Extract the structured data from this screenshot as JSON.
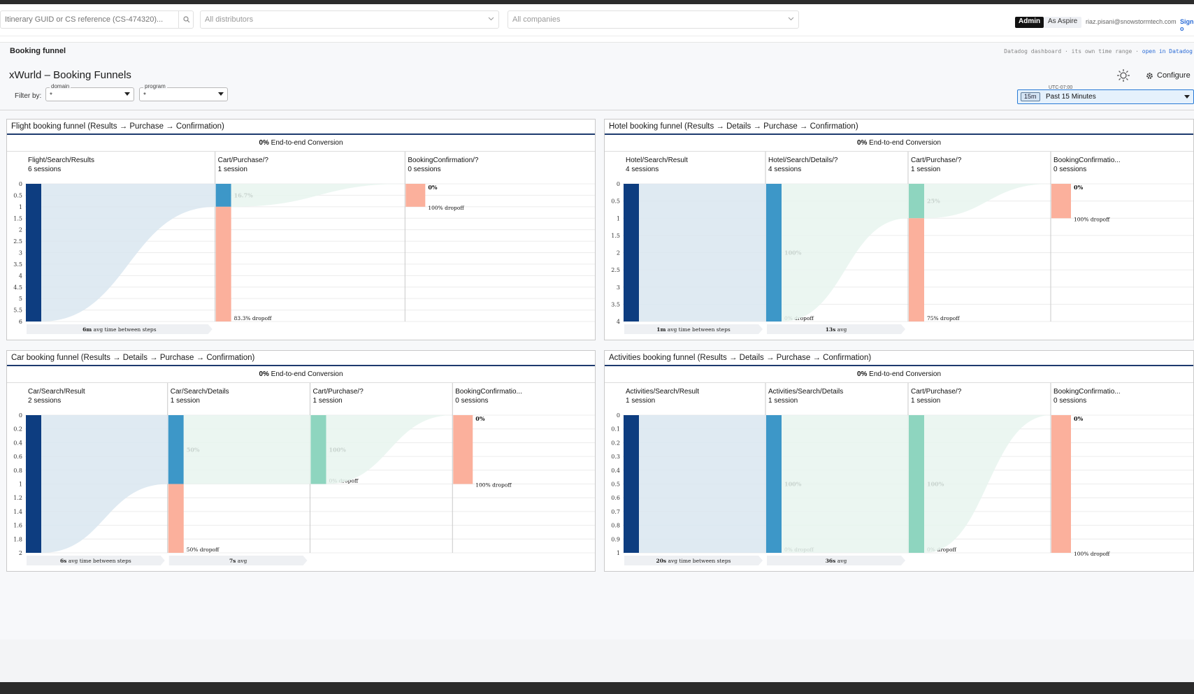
{
  "topbar": {
    "search_placeholder": "Itinerary GUID or CS reference (CS-474320)...",
    "distributors": "All distributors",
    "companies": "All companies",
    "admin": "Admin",
    "as_aspire": "As Aspire",
    "user_email": "riaz.pisani@snowstormtech.com",
    "sign_link": "Sign o"
  },
  "page": {
    "section_title": "Booking funnel",
    "dd_note_prefix": "Datadog dashboard · its own time range ·",
    "dd_note_link": "open in Datadog",
    "dashboard_title": "xWurld – Booking Funnels",
    "configure_label": "Configure",
    "filter_label": "Filter by:",
    "filters": [
      {
        "legend": "domain",
        "value": "*"
      },
      {
        "legend": "program",
        "value": "*"
      }
    ],
    "timezone": "UTC-07:00",
    "time_chip": "15m",
    "time_range": "Past 15 Minutes"
  },
  "colors": {
    "step1": "#0d3d80",
    "step_mid": "#3d97c8",
    "step_green": "#8ed5bf",
    "dropoff": "#fbb09c",
    "flow_blue": "#d9e6f0",
    "flow_green": "#e8f4ee"
  },
  "panels": [
    {
      "title": "Flight booking funnel (Results → Purchase → Confirmation)",
      "conversion_value": "0%",
      "conversion_label": "End-to-end Conversion",
      "y_ticks": [
        "0",
        "0.5",
        "1",
        "1.5",
        "2",
        "2.5",
        "3",
        "3.5",
        "4",
        "4.5",
        "5",
        "5.5",
        "6"
      ],
      "y_max": 6,
      "steps": [
        {
          "name": "Flight/Search/Results",
          "sessions": "6 sessions",
          "value": 6,
          "kind": "start"
        },
        {
          "name": "Cart/Purchase/?",
          "sessions": "1 session",
          "value": 1,
          "kind": "mid",
          "pct": "16.7%",
          "dropoff": "83.3%",
          "dropoff_label": "dropoff"
        },
        {
          "name": "BookingConfirmation/?",
          "sessions": "0 sessions",
          "value": 0,
          "kind": "end",
          "pct": "0%",
          "dropoff": "100%",
          "dropoff_label": "dropoff"
        }
      ],
      "avg_labels": [
        {
          "value": "6m",
          "text": "avg time between steps"
        }
      ]
    },
    {
      "title": "Hotel booking funnel (Results → Details → Purchase → Confirmation)",
      "conversion_value": "0%",
      "conversion_label": "End-to-end Conversion",
      "y_ticks": [
        "0",
        "0.5",
        "1",
        "1.5",
        "2",
        "2.5",
        "3",
        "3.5",
        "4"
      ],
      "y_max": 4,
      "steps": [
        {
          "name": "Hotel/Search/Result",
          "sessions": "4 sessions",
          "value": 4,
          "kind": "start"
        },
        {
          "name": "Hotel/Search/Details/?",
          "sessions": "4 sessions",
          "value": 4,
          "kind": "mid",
          "pct": "100%",
          "dropoff": "0%",
          "dropoff_label": "dropoff"
        },
        {
          "name": "Cart/Purchase/?",
          "sessions": "1 session",
          "value": 1,
          "kind": "green",
          "pct": "25%",
          "dropoff": "75%",
          "dropoff_label": "dropoff"
        },
        {
          "name": "BookingConfirmatio...",
          "sessions": "0 sessions",
          "value": 0,
          "kind": "end",
          "pct": "0%",
          "dropoff": "100%",
          "dropoff_label": "dropoff"
        }
      ],
      "avg_labels": [
        {
          "value": "1m",
          "text": "avg time between steps"
        },
        {
          "value": "13s",
          "text": "avg"
        }
      ]
    },
    {
      "title": "Car booking funnel (Results → Details → Purchase → Confirmation)",
      "conversion_value": "0%",
      "conversion_label": "End-to-end Conversion",
      "y_ticks": [
        "0",
        "0.2",
        "0.4",
        "0.6",
        "0.8",
        "1",
        "1.2",
        "1.4",
        "1.6",
        "1.8",
        "2"
      ],
      "y_max": 2,
      "steps": [
        {
          "name": "Car/Search/Result",
          "sessions": "2 sessions",
          "value": 2,
          "kind": "start"
        },
        {
          "name": "Car/Search/Details",
          "sessions": "1 session",
          "value": 1,
          "kind": "mid",
          "pct": "50%",
          "dropoff": "50%",
          "dropoff_label": "dropoff"
        },
        {
          "name": "Cart/Purchase/?",
          "sessions": "1 session",
          "value": 1,
          "kind": "green",
          "pct": "100%",
          "dropoff": "0%",
          "dropoff_label": "dropoff"
        },
        {
          "name": "BookingConfirmatio...",
          "sessions": "0 sessions",
          "value": 0,
          "kind": "end",
          "pct": "0%",
          "dropoff": "100%",
          "dropoff_label": "dropoff"
        }
      ],
      "avg_labels": [
        {
          "value": "6s",
          "text": "avg time between steps"
        },
        {
          "value": "7s",
          "text": "avg"
        }
      ]
    },
    {
      "title": "Activities booking funnel (Results → Details → Purchase → Confirmation)",
      "conversion_value": "0%",
      "conversion_label": "End-to-end Conversion",
      "y_ticks": [
        "0",
        "0.1",
        "0.2",
        "0.3",
        "0.4",
        "0.5",
        "0.6",
        "0.7",
        "0.8",
        "0.9",
        "1"
      ],
      "y_max": 1,
      "steps": [
        {
          "name": "Activities/Search/Result",
          "sessions": "1 session",
          "value": 1,
          "kind": "start"
        },
        {
          "name": "Activities/Search/Details",
          "sessions": "1 session",
          "value": 1,
          "kind": "mid",
          "pct": "100%",
          "dropoff": "0%",
          "dropoff_label": "dropoff"
        },
        {
          "name": "Cart/Purchase/?",
          "sessions": "1 session",
          "value": 1,
          "kind": "green",
          "pct": "100%",
          "dropoff": "0%",
          "dropoff_label": "dropoff"
        },
        {
          "name": "BookingConfirmatio...",
          "sessions": "0 sessions",
          "value": 0,
          "kind": "end",
          "pct": "0%",
          "dropoff": "100%",
          "dropoff_label": "dropoff"
        }
      ],
      "avg_labels": [
        {
          "value": "20s",
          "text": "avg time between steps"
        },
        {
          "value": "36s",
          "text": "avg"
        }
      ]
    }
  ]
}
